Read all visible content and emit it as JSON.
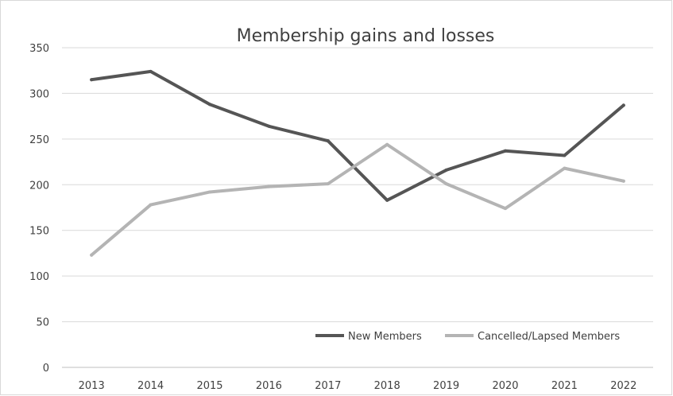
{
  "chart_data": {
    "type": "line",
    "title": "Membership gains and losses",
    "xlabel": "",
    "ylabel": "",
    "categories": [
      "2013",
      "2014",
      "2015",
      "2016",
      "2017",
      "2018",
      "2019",
      "2020",
      "2021",
      "2022"
    ],
    "yticks": [
      "0",
      "50",
      "100",
      "150",
      "200",
      "250",
      "300",
      "350"
    ],
    "ylim": [
      0,
      350
    ],
    "grid": "horizontal",
    "legend_position": "bottom-right",
    "series": [
      {
        "name": "New Members",
        "color": "#555555",
        "values": [
          315,
          324,
          288,
          264,
          248,
          183,
          216,
          237,
          232,
          287
        ]
      },
      {
        "name": "Cancelled/Lapsed Members",
        "color": "#b4b4b4",
        "values": [
          123,
          178,
          192,
          198,
          201,
          244,
          201,
          174,
          218,
          204
        ]
      }
    ]
  }
}
